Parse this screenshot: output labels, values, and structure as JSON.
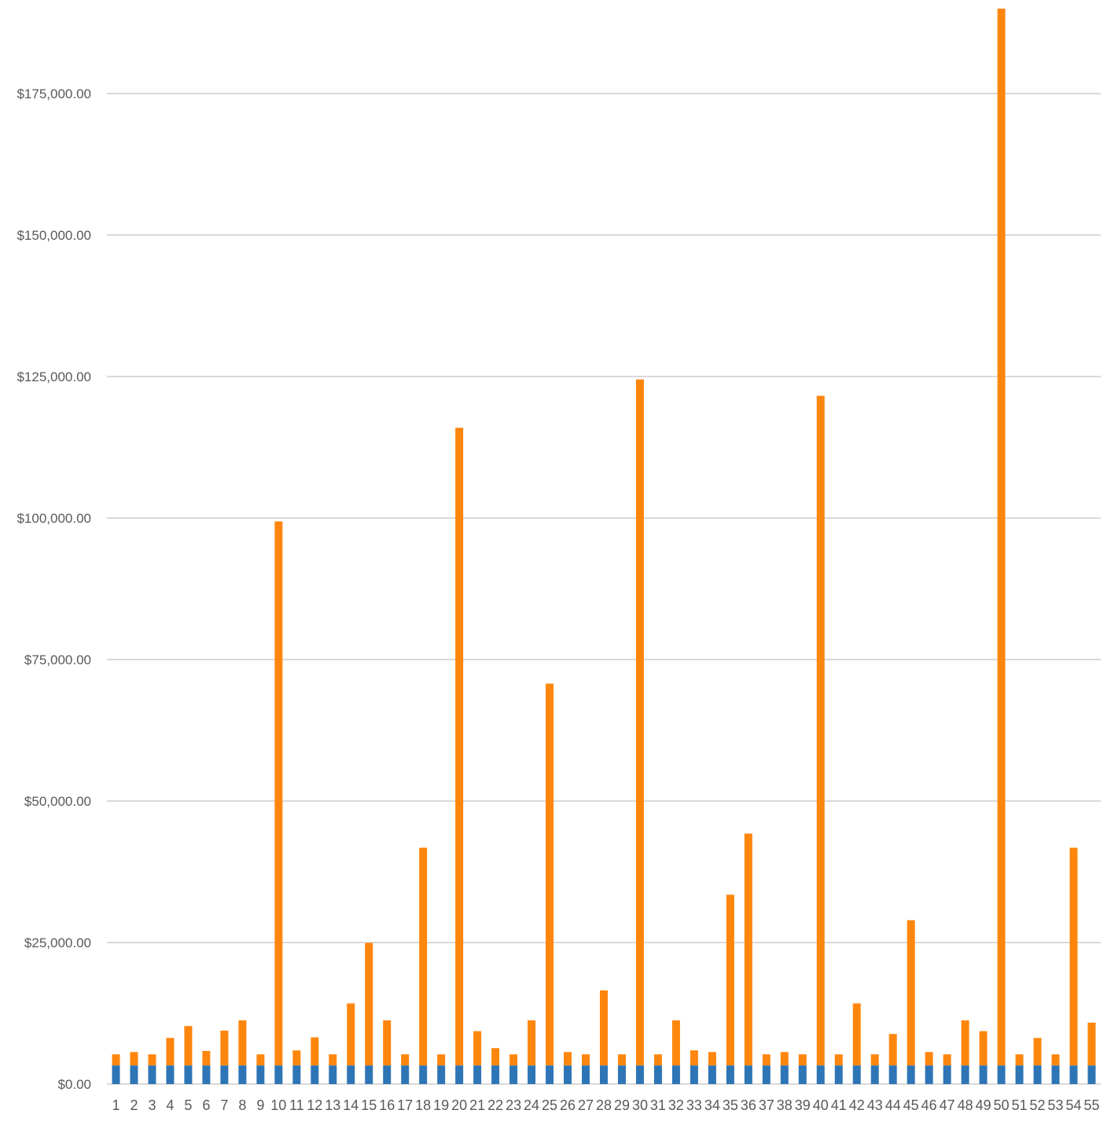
{
  "chart_data": {
    "type": "bar",
    "stacked": true,
    "title": "",
    "xlabel": "",
    "ylabel": "",
    "ylim": [
      0,
      190000
    ],
    "yticks": [
      0,
      25000,
      50000,
      75000,
      100000,
      125000,
      150000,
      175000
    ],
    "ytick_labels": [
      "$0.00",
      "$25,000.00",
      "$50,000.00",
      "$75,000.00",
      "$100,000.00",
      "$125,000.00",
      "$150,000.00",
      "$175,000.00"
    ],
    "grid": true,
    "legend": "none",
    "categories": [
      "1",
      "2",
      "3",
      "4",
      "5",
      "6",
      "7",
      "8",
      "9",
      "10",
      "11",
      "12",
      "13",
      "14",
      "15",
      "16",
      "17",
      "18",
      "19",
      "20",
      "21",
      "22",
      "23",
      "24",
      "25",
      "26",
      "27",
      "28",
      "29",
      "30",
      "31",
      "32",
      "33",
      "34",
      "35",
      "36",
      "37",
      "38",
      "39",
      "40",
      "41",
      "42",
      "43",
      "44",
      "45",
      "46",
      "47",
      "48",
      "49",
      "50",
      "51",
      "52",
      "53",
      "54",
      "55"
    ],
    "series": [
      {
        "color": "#2E75B6",
        "values": [
          3300,
          3300,
          3300,
          3300,
          3300,
          3300,
          3300,
          3300,
          3300,
          3300,
          3300,
          3300,
          3300,
          3300,
          3300,
          3300,
          3300,
          3300,
          3300,
          3300,
          3300,
          3300,
          3300,
          3300,
          3300,
          3300,
          3300,
          3300,
          3300,
          3300,
          3300,
          3300,
          3300,
          3300,
          3300,
          3300,
          3300,
          3300,
          3300,
          3300,
          3300,
          3300,
          3300,
          3300,
          3300,
          3300,
          3300,
          3300,
          3300,
          3300,
          3300,
          3300,
          3300,
          3300,
          3300
        ]
      },
      {
        "color": "#FF860D",
        "values": [
          1950,
          2350,
          1950,
          4850,
          6950,
          2550,
          6150,
          7950,
          1950,
          96100,
          2650,
          4950,
          1950,
          10950,
          21650,
          7950,
          1950,
          38450,
          1950,
          112650,
          6050,
          3050,
          1950,
          7950,
          67450,
          2350,
          1950,
          13250,
          1950,
          121200,
          1950,
          7950,
          2650,
          2350,
          30150,
          40950,
          1950,
          2350,
          1950,
          118300,
          1950,
          10950,
          1950,
          5550,
          25650,
          2350,
          1950,
          7950,
          6050,
          186700,
          1950,
          4850,
          1950,
          38450,
          7550
        ]
      }
    ]
  }
}
